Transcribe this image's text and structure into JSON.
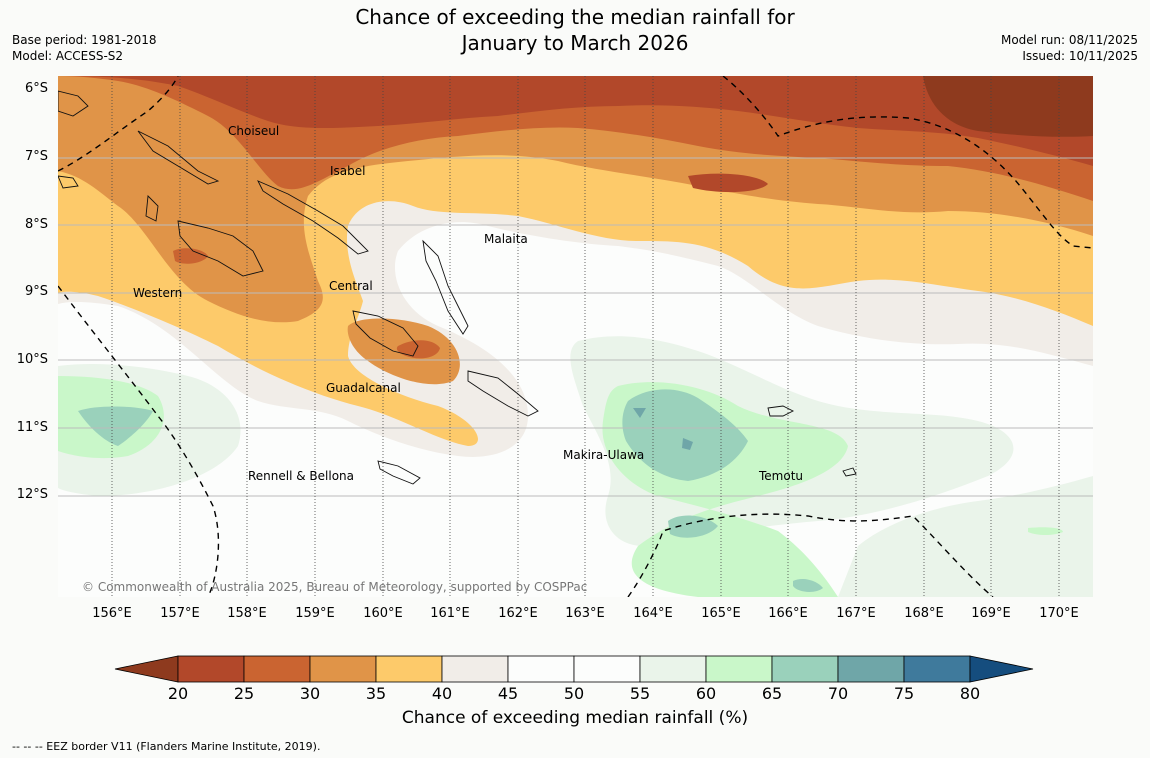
{
  "title": {
    "line1": "Chance of exceeding the median rainfall for",
    "line2": "January to March 2026"
  },
  "meta_left": {
    "base_period": "Base period: 1981-2018",
    "model": "Model: ACCESS-S2"
  },
  "meta_right": {
    "model_run": "Model run: 08/11/2025",
    "issued": "Issued: 10/11/2025"
  },
  "lat_labels": [
    "6°S",
    "7°S",
    "8°S",
    "9°S",
    "10°S",
    "11°S",
    "12°S"
  ],
  "lon_labels": [
    "156°E",
    "157°E",
    "158°E",
    "159°E",
    "160°E",
    "161°E",
    "162°E",
    "163°E",
    "164°E",
    "165°E",
    "166°E",
    "167°E",
    "168°E",
    "169°E",
    "170°E"
  ],
  "places": {
    "choiseul": "Choiseul",
    "isabel": "Isabel",
    "malaita": "Malaita",
    "central": "Central",
    "western": "Western",
    "guadalcanal": "Guadalcanal",
    "rennell": "Rennell & Bellona",
    "makira": "Makira-Ulawa",
    "temotu": "Temotu"
  },
  "copyright": "© Commonwealth of Australia 2025, Bureau of Meteorology, supported by COSPPac",
  "colorbar": {
    "ticks": [
      "20",
      "25",
      "30",
      "35",
      "40",
      "45",
      "50",
      "55",
      "60",
      "65",
      "70",
      "75",
      "80"
    ],
    "colors": [
      "#8e3a1e",
      "#b2482a",
      "#ca6431",
      "#e09448",
      "#fdca6a",
      "#f1ede8",
      "#fcfdfc",
      "#fcfdfc",
      "#eaf4ea",
      "#c9f7c9",
      "#9ad1bb",
      "#6fa6a8",
      "#3f7a9c",
      "#154d7e"
    ],
    "label": "Chance of exceeding median rainfall (%)"
  },
  "eez_note": "--  --  -- EEZ border V11 (Flanders Marine Institute, 2019)."
}
